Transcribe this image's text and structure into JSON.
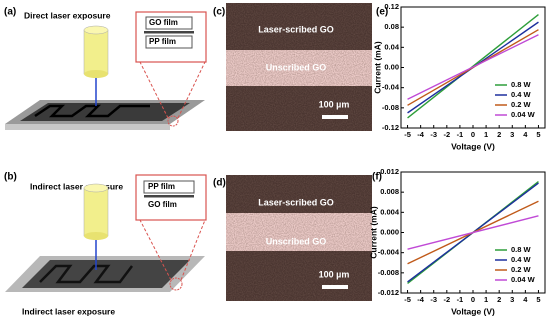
{
  "panels": {
    "a": {
      "label": "(a)",
      "title": "Direct laser exposure",
      "top_film": "GO film",
      "bottom_film": "PP film"
    },
    "b": {
      "label": "(b)",
      "title": "Indirect laser exposure",
      "top_film": "PP film",
      "bottom_film": "GO film",
      "caption": "Indirect laser exposure"
    },
    "c": {
      "label": "(c)",
      "scribed": "Laser-scribed GO",
      "unscribed": "Unscribed GO",
      "scale": "100 µm"
    },
    "d": {
      "label": "(d)",
      "scribed": "Laser-scribed GO",
      "unscribed": "Unscribed GO",
      "scale": "100 µm"
    }
  },
  "chart_data": [
    {
      "type": "line",
      "panel_label": "(e)",
      "xlabel": "Voltage (V)",
      "ylabel": "Current (mA)",
      "x": [
        -5,
        5
      ],
      "xlim": [
        -5.5,
        5.5
      ],
      "xticks": [
        -5,
        -4,
        -3,
        -2,
        -1,
        0,
        1,
        2,
        3,
        4,
        5
      ],
      "ylim": [
        -0.12,
        0.12
      ],
      "yticks": [
        -0.12,
        -0.08,
        -0.04,
        {
          "value": 0,
          "label": "0.00"
        },
        0.04,
        0.08,
        0.12
      ],
      "legend": "lower right",
      "series": [
        {
          "name": "0.8 W",
          "color": "#2e9e3a",
          "values": [
            -0.1,
            0.105
          ]
        },
        {
          "name": "0.4 W",
          "color": "#1d2f9e",
          "values": [
            -0.09,
            0.09
          ]
        },
        {
          "name": "0.2 W",
          "color": "#c05a1a",
          "values": [
            -0.075,
            0.075
          ]
        },
        {
          "name": "0.04 W",
          "color": "#c04ad6",
          "values": [
            -0.063,
            0.065
          ]
        }
      ]
    },
    {
      "type": "line",
      "panel_label": "(f)",
      "xlabel": "Voltage (V)",
      "ylabel": "Current (mA)",
      "x": [
        -5,
        5
      ],
      "xlim": [
        -5.5,
        5.5
      ],
      "xticks": [
        -5,
        -4,
        -3,
        -2,
        -1,
        0,
        1,
        2,
        3,
        4,
        5
      ],
      "ylim": [
        -0.012,
        0.012
      ],
      "yticks": [
        -0.012,
        -0.008,
        -0.004,
        {
          "value": 0,
          "label": "0.000"
        },
        0.004,
        0.008,
        0.012
      ],
      "legend": "lower right",
      "series": [
        {
          "name": "0.8 W",
          "color": "#2e9e3a",
          "values": [
            -0.0101,
            0.0101
          ]
        },
        {
          "name": "0.4 W",
          "color": "#1d2f9e",
          "values": [
            -0.0098,
            0.0098
          ]
        },
        {
          "name": "0.2 W",
          "color": "#c05a1a",
          "values": [
            -0.0062,
            0.0062
          ]
        },
        {
          "name": "0.04 W",
          "color": "#c04ad6",
          "values": [
            -0.0033,
            0.0033
          ]
        }
      ]
    }
  ]
}
